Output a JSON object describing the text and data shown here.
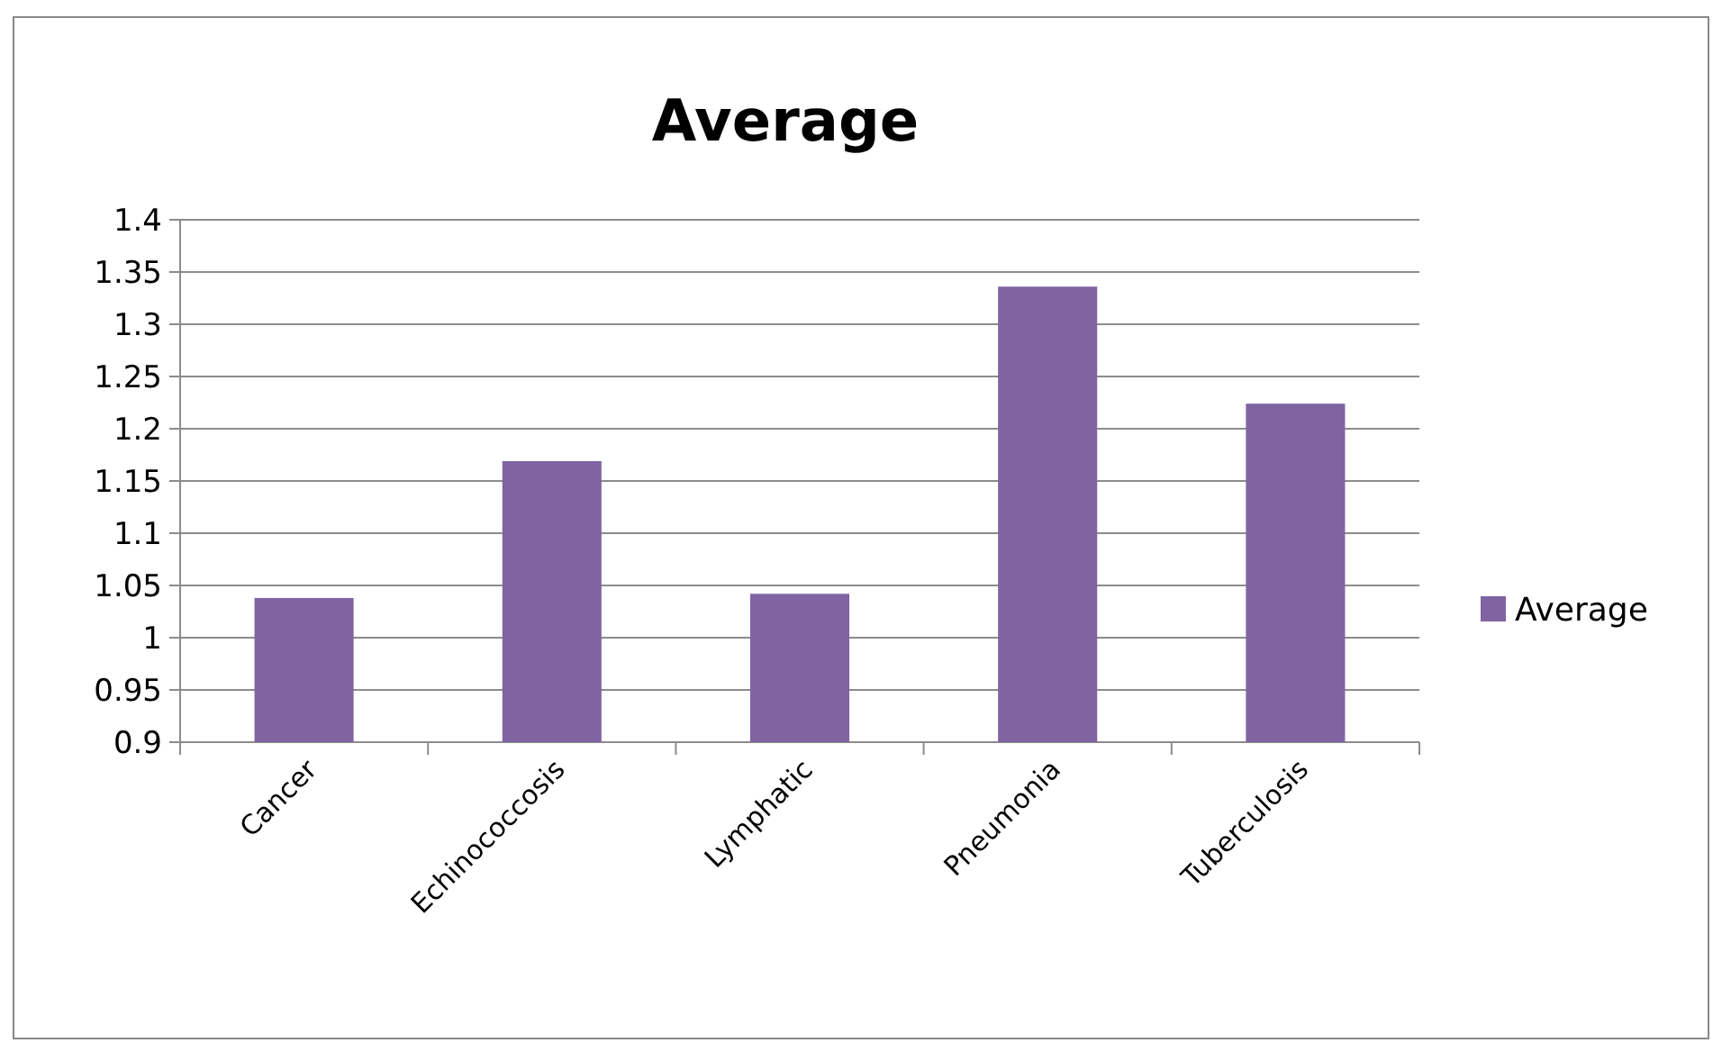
{
  "chart_data": {
    "type": "bar",
    "title": "Average",
    "categories": [
      "Cancer",
      "Echinococcosis",
      "Lymphatic",
      "Pneumonia",
      "Tuberculosis"
    ],
    "series": [
      {
        "name": "Average",
        "color": "#8064a2",
        "values": [
          1.038,
          1.169,
          1.042,
          1.336,
          1.224
        ]
      }
    ],
    "ylim": [
      0.9,
      1.4
    ],
    "yticks": [
      0.9,
      0.95,
      1,
      1.05,
      1.1,
      1.15,
      1.2,
      1.25,
      1.3,
      1.35,
      1.4
    ],
    "grid": "y",
    "legend": "right"
  }
}
